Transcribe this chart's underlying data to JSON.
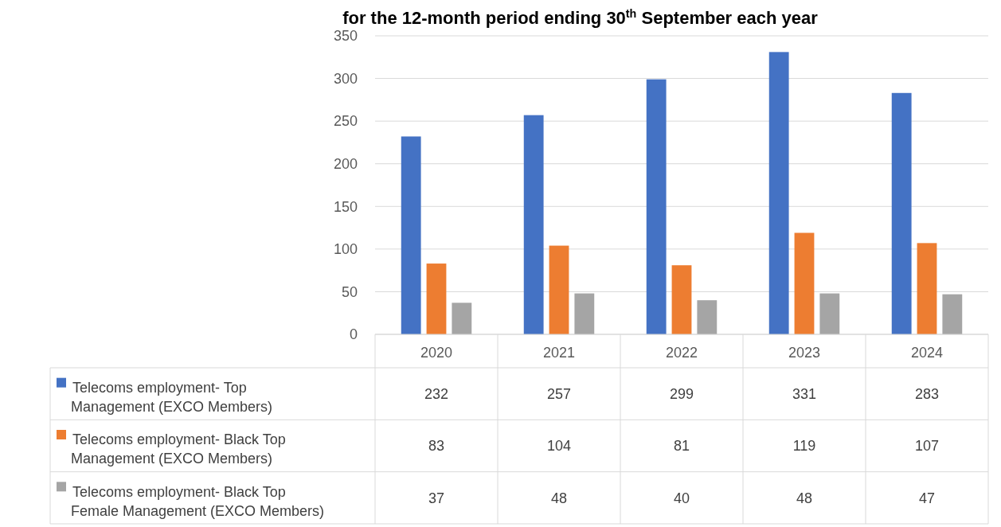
{
  "chart_data": {
    "type": "bar",
    "title": "for the 12-month period ending 30$^{th}$ September each year",
    "categories": [
      "2020",
      "2021",
      "2022",
      "2023",
      "2024"
    ],
    "series": [
      {
        "name": "Telecoms employment- Top Management (EXCO Members)",
        "color": "#4472c4",
        "values": [
          232,
          257,
          299,
          331,
          283
        ]
      },
      {
        "name": "Telecoms employment- Black Top Management (EXCO Members)",
        "color": "#ed7d31",
        "values": [
          83,
          104,
          81,
          119,
          107
        ]
      },
      {
        "name": "Telecoms employment- Black Top Female Management (EXCO Members)",
        "color": "#a5a5a5",
        "values": [
          37,
          48,
          40,
          48,
          47
        ]
      }
    ],
    "ylim": [
      0,
      350
    ],
    "yticks": [
      0,
      50,
      100,
      150,
      200,
      250,
      300,
      350
    ],
    "grid": "y",
    "data_labels": true,
    "legend": "bottom left"
  }
}
